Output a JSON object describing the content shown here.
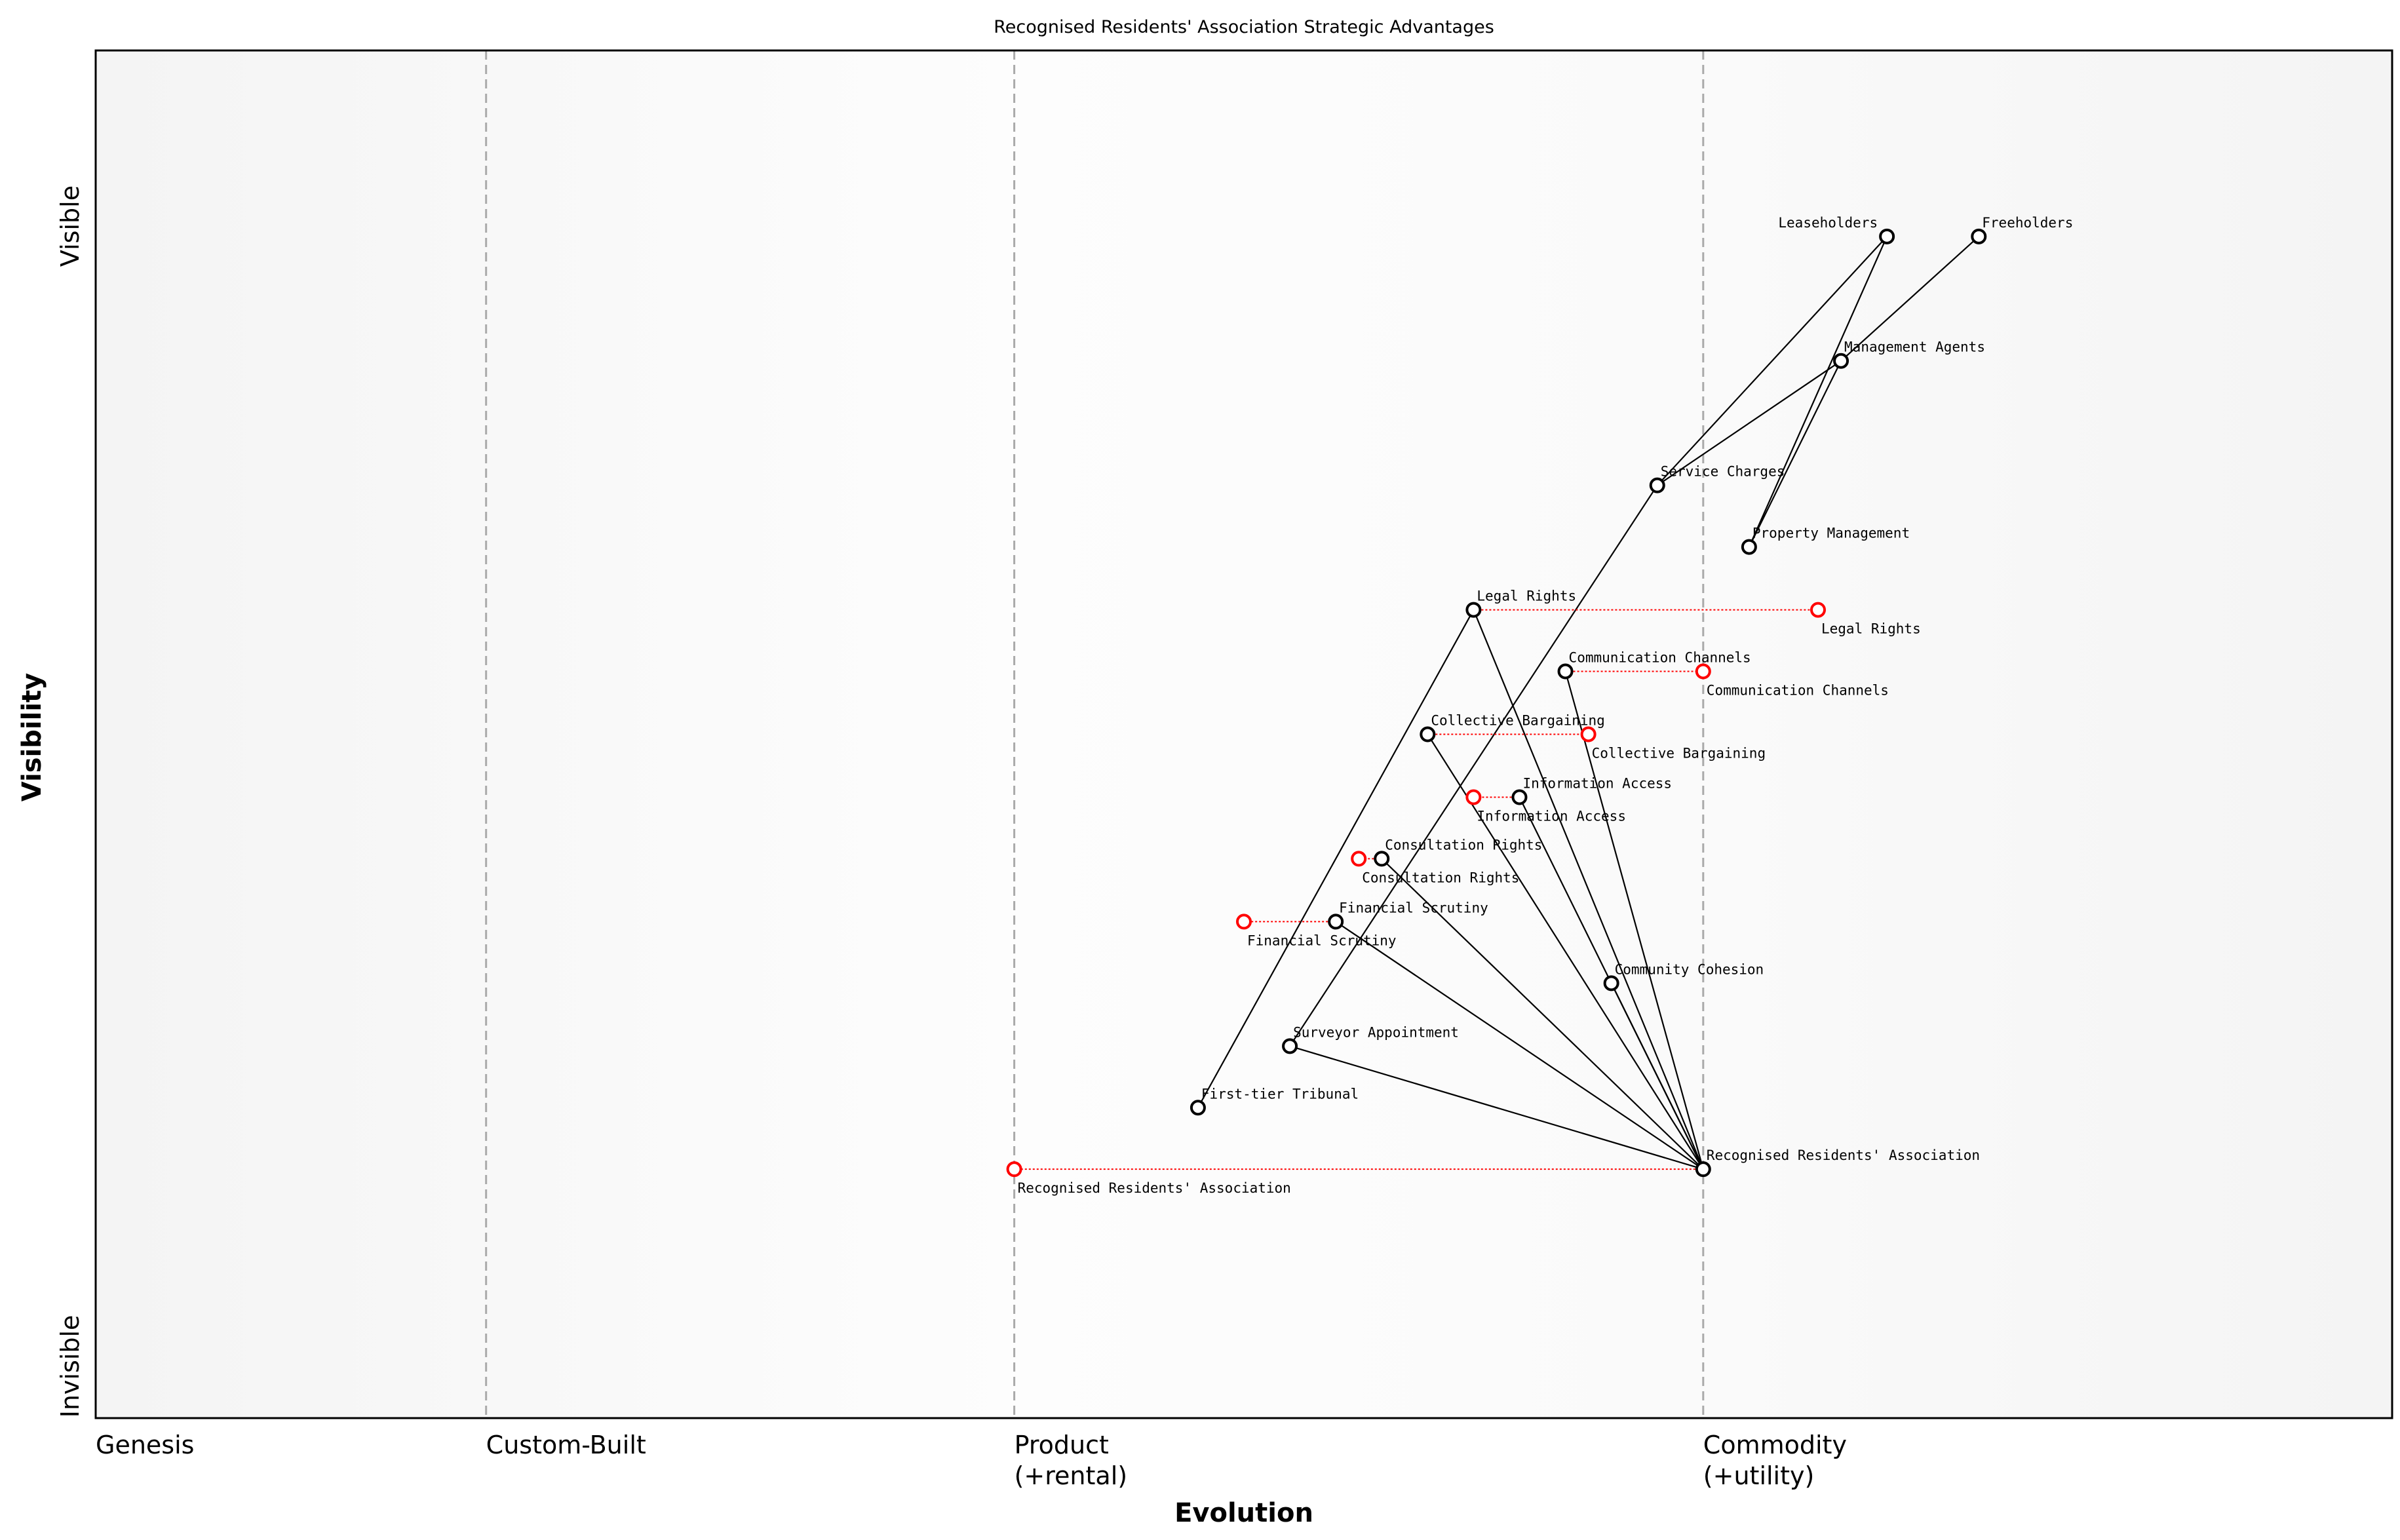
{
  "chart_data": {
    "type": "wardley-map",
    "title": "Recognised Residents' Association Strategic Advantages",
    "xlabel": "Evolution",
    "ylabel": "Visibility",
    "y_ticks": {
      "top": "Visible",
      "bottom": "Invisible"
    },
    "xlim": [
      0,
      1
    ],
    "ylim": [
      0,
      1
    ],
    "stages": [
      {
        "label": "Genesis",
        "sub": "",
        "x": 0.0,
        "line": false
      },
      {
        "label": "Custom-Built",
        "sub": "",
        "x": 0.17,
        "line": true
      },
      {
        "label": "Product",
        "sub": "(+rental)",
        "x": 0.4,
        "line": true
      },
      {
        "label": "Commodity",
        "sub": "(+utility)",
        "x": 0.7,
        "line": true
      }
    ],
    "components": [
      {
        "name": "Leaseholders",
        "evolution": 0.78,
        "visibility": 0.864
      },
      {
        "name": "Freeholders",
        "evolution": 0.82,
        "visibility": 0.864
      },
      {
        "name": "Management Agents",
        "evolution": 0.76,
        "visibility": 0.773
      },
      {
        "name": "Service Charges",
        "evolution": 0.68,
        "visibility": 0.682
      },
      {
        "name": "Property Management",
        "evolution": 0.72,
        "visibility": 0.637
      },
      {
        "name": "Legal Rights",
        "evolution": 0.6,
        "visibility": 0.591
      },
      {
        "name": "Communication Channels",
        "evolution": 0.64,
        "visibility": 0.546
      },
      {
        "name": "Collective Bargaining",
        "evolution": 0.58,
        "visibility": 0.5
      },
      {
        "name": "Information Access",
        "evolution": 0.62,
        "visibility": 0.454
      },
      {
        "name": "Consultation Rights",
        "evolution": 0.56,
        "visibility": 0.409
      },
      {
        "name": "Financial Scrutiny",
        "evolution": 0.54,
        "visibility": 0.363
      },
      {
        "name": "Community Cohesion",
        "evolution": 0.66,
        "visibility": 0.318
      },
      {
        "name": "Surveyor Appointment",
        "evolution": 0.52,
        "visibility": 0.272
      },
      {
        "name": "First-tier Tribunal",
        "evolution": 0.48,
        "visibility": 0.227
      },
      {
        "name": "Recognised Residents' Association",
        "evolution": 0.7,
        "visibility": 0.182
      }
    ],
    "links": [
      [
        "Leaseholders",
        "Service Charges"
      ],
      [
        "Leaseholders",
        "Property Management"
      ],
      [
        "Freeholders",
        "Management Agents"
      ],
      [
        "Management Agents",
        "Service Charges"
      ],
      [
        "Management Agents",
        "Property Management"
      ],
      [
        "Service Charges",
        "Surveyor Appointment"
      ],
      [
        "Legal Rights",
        "First-tier Tribunal"
      ],
      [
        "Recognised Residents' Association",
        "Legal Rights"
      ],
      [
        "Recognised Residents' Association",
        "Communication Channels"
      ],
      [
        "Recognised Residents' Association",
        "Collective Bargaining"
      ],
      [
        "Recognised Residents' Association",
        "Information Access"
      ],
      [
        "Recognised Residents' Association",
        "Consultation Rights"
      ],
      [
        "Recognised Residents' Association",
        "Financial Scrutiny"
      ],
      [
        "Recognised Residents' Association",
        "Community Cohesion"
      ],
      [
        "Recognised Residents' Association",
        "Surveyor Appointment"
      ]
    ],
    "evolve": [
      {
        "name": "Legal Rights",
        "to": 0.75
      },
      {
        "name": "Communication Channels",
        "to": 0.7
      },
      {
        "name": "Collective Bargaining",
        "to": 0.65
      },
      {
        "name": "Information Access",
        "to": 0.6
      },
      {
        "name": "Consultation Rights",
        "to": 0.55
      },
      {
        "name": "Financial Scrutiny",
        "to": 0.5
      },
      {
        "name": "Recognised Residents' Association",
        "to": 0.4
      }
    ],
    "colors": {
      "component": "#000000",
      "evolve": "#ff0000",
      "stage_line": "#aaaaaa"
    }
  }
}
